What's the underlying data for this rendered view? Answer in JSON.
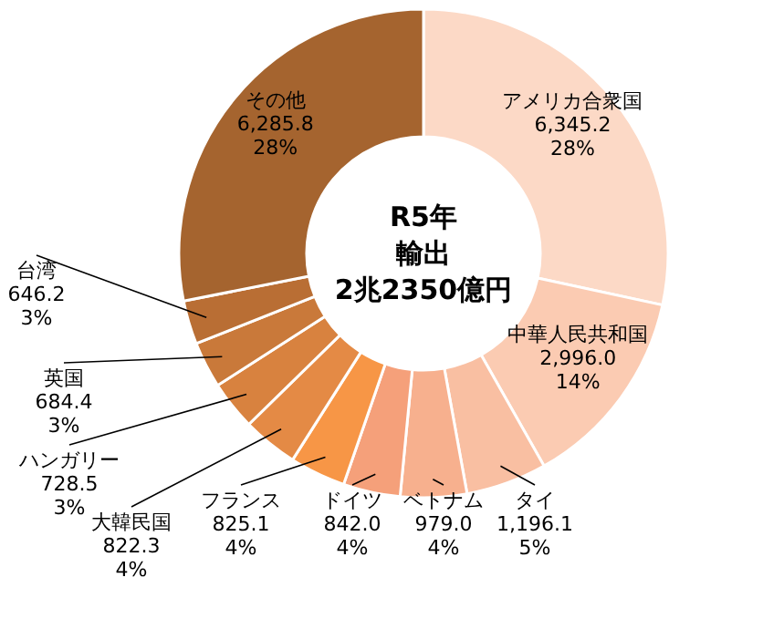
{
  "chart_data": {
    "type": "donut",
    "title": "R5年",
    "subtitle": "輸出",
    "annotations": [
      "2兆2350億円"
    ],
    "categories": [
      "アメリカ合衆国",
      "中華人民共和国",
      "タイ",
      "ベトナム",
      "ドイツ",
      "フランス",
      "大韓民国",
      "ハンガリー",
      "英国",
      "台湾",
      "その他"
    ],
    "values": [
      6345.2,
      2996.0,
      1196.1,
      979.0,
      842.0,
      825.1,
      822.3,
      728.5,
      684.4,
      646.2,
      6285.8
    ],
    "value_labels": [
      "6,345.2\n28%",
      "2,996.0\n14%",
      "1,196.1\n5%",
      "979.0\n4%",
      "842.0\n4%",
      "825.1\n4%",
      "822.3\n4%",
      "728.5\n3%",
      "684.4\n3%",
      "646.2\n3%",
      "6,285.8\n28%"
    ],
    "colors": [
      "#fcd9c6",
      "#fbcbb2",
      "#f9bfa2",
      "#f7b08e",
      "#f5a07a",
      "#f79646",
      "#e48a45",
      "#d8823f",
      "#c9793a",
      "#b96e34",
      "#a5642f"
    ]
  }
}
